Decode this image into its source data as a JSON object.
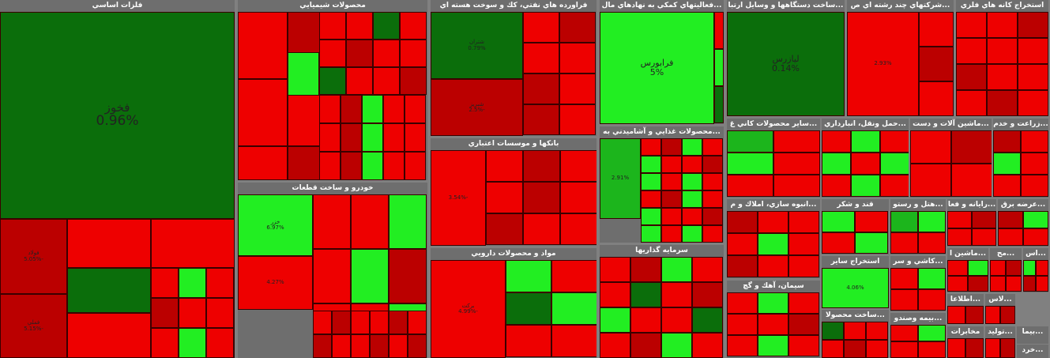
{
  "colors": {
    "dark_green": "#0b6e0b",
    "green": "#1cb51c",
    "bright_green": "#22ee22",
    "red": "#ee0000",
    "dark_red": "#bb0000",
    "header_bg": "#6e6e6e"
  },
  "sectors": [
    {
      "title": "فلزات اساسي",
      "tiles": [
        {
          "name": "فخوز",
          "pct": "0.96%",
          "color": "dark_green"
        },
        {
          "name": "فولاد",
          "pct": "-5.05%",
          "color": "dark_red"
        },
        {
          "name": "فملي",
          "pct": "-5.15%",
          "color": "dark_red"
        }
      ]
    },
    {
      "title": "محصولات شيميايي",
      "tiles": [
        {
          "name": "",
          "pct": "",
          "color": "bright_green"
        }
      ]
    },
    {
      "title": "خودرو و ساخت قطعات",
      "tiles": [
        {
          "name": "خزر",
          "pct": "6.97%",
          "color": "bright_green"
        },
        {
          "name": "",
          "pct": "4.27%",
          "color": "red"
        }
      ]
    },
    {
      "title": "فراورده هاي نفتي، كك و سوخت هسته اي",
      "tiles": [
        {
          "name": "شتران",
          "pct": "0.79%",
          "color": "dark_green"
        },
        {
          "name": "شبريز",
          "pct": "-2.5%",
          "color": "dark_red"
        }
      ]
    },
    {
      "title": "بانكها و موسسات اعتباري",
      "tiles": [
        {
          "name": "",
          "pct": "-3.54%",
          "color": "red"
        }
      ]
    },
    {
      "title": "مواد و محصولات دارويي",
      "tiles": [
        {
          "name": "بركت",
          "pct": "-4.99%",
          "color": "red"
        }
      ]
    },
    {
      "title": "...فعاليتهاي كمكي به نهادهاي مال",
      "tiles": [
        {
          "name": "فرابورس",
          "pct": "5%",
          "color": "bright_green"
        }
      ]
    },
    {
      "title": "...محصولات غذايي و آشاميدني به",
      "tiles": [
        {
          "name": "",
          "pct": "2.91%",
          "color": "green"
        }
      ]
    },
    {
      "title": "سرمايه گذاريها",
      "tiles": [
        {
          "name": "",
          "pct": "",
          "color": "red"
        }
      ]
    },
    {
      "title": "...ساخت دستگاهها و وسايل ارتبا",
      "tiles": [
        {
          "name": "ليازرس",
          "pct": "0.14%",
          "color": "dark_green"
        }
      ]
    },
    {
      "title": "...شركتهاي چند رشته اي ص",
      "tiles": [
        {
          "name": "",
          "pct": "2.93%",
          "color": "red"
        }
      ]
    },
    {
      "title": "استخراج كانه هاي فلزي",
      "tiles": []
    },
    {
      "title": "...ساير محصولات كاني غ",
      "tiles": []
    },
    {
      "title": "...حمل ونقل، انبارداري",
      "tiles": []
    },
    {
      "title": "...ماشين آلات و دست",
      "tiles": []
    },
    {
      "title": "...زراعت و خدم",
      "tiles": []
    },
    {
      "title": "...انبوه سازي، املاك و م",
      "tiles": []
    },
    {
      "title": "قند و شكر",
      "tiles": []
    },
    {
      "title": "...هتل و رستو",
      "tiles": []
    },
    {
      "title": "...رايانه و فعا",
      "tiles": []
    },
    {
      "title": "...عرضه برق",
      "tiles": []
    },
    {
      "title": "سيمان، آهك و گچ",
      "tiles": []
    },
    {
      "title": "استخراج ساير",
      "tiles": [
        {
          "name": "",
          "pct": "4.06%",
          "color": "bright_green"
        }
      ]
    },
    {
      "title": "...كاشي و سر",
      "tiles": []
    },
    {
      "title": "...ماشين ا",
      "tiles": []
    },
    {
      "title": "...مح",
      "tiles": []
    },
    {
      "title": "...اس",
      "tiles": []
    },
    {
      "title": "...ساخت محصولا",
      "tiles": []
    },
    {
      "title": "...بيمه وصندو",
      "tiles": []
    },
    {
      "title": "...اطلاعا",
      "tiles": []
    },
    {
      "title": "...لاس",
      "tiles": []
    },
    {
      "title": "مخابرات",
      "tiles": []
    },
    {
      "title": "...توليد",
      "tiles": []
    },
    {
      "title": "...بيما",
      "tiles": []
    },
    {
      "title": "...خرد",
      "tiles": []
    }
  ]
}
